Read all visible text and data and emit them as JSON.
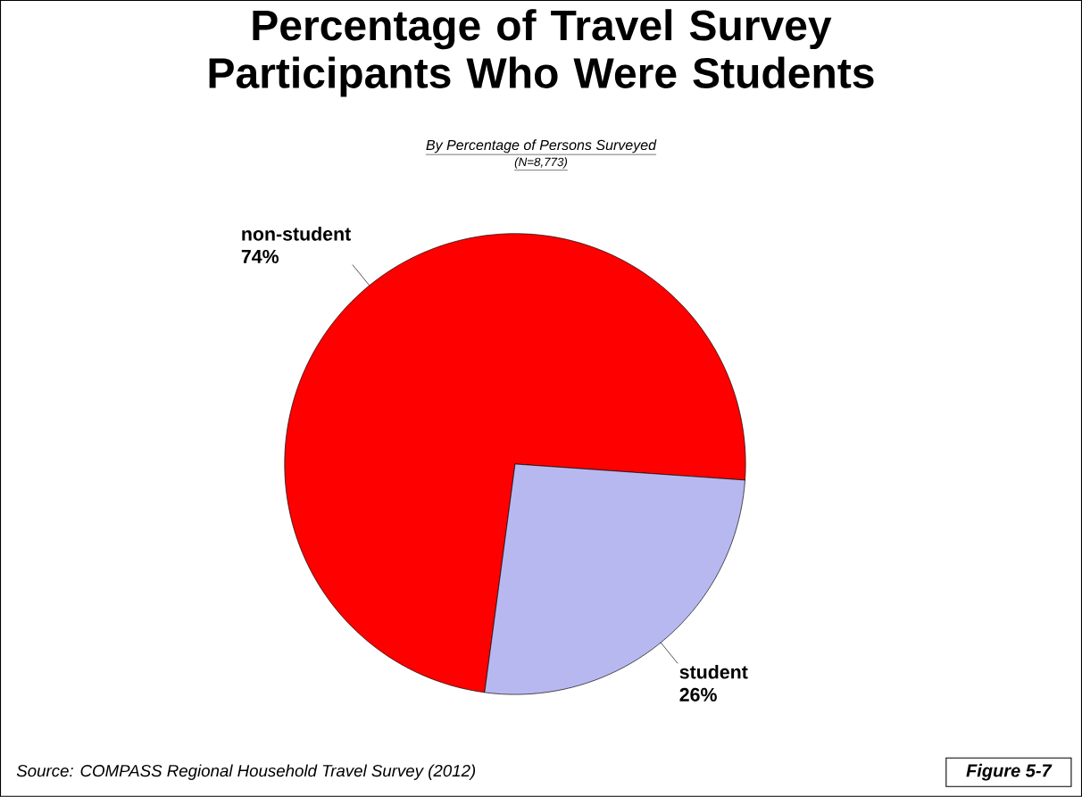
{
  "chart_data": {
    "type": "pie",
    "title": "Percentage of Travel Survey Participants Who Were Students",
    "subtitle": "By Percentage of Persons Surveyed",
    "categories": [
      "non-student",
      "student"
    ],
    "values": [
      74,
      26
    ],
    "colors": [
      "#ff0000",
      "#b8b8f0"
    ],
    "value_labels": [
      "74%",
      "26%"
    ],
    "annotations": [
      "(N=8,773)",
      "Source:  COMPASS Regional Household Travel Survey (2012)",
      "Figure 5-7"
    ]
  }
}
